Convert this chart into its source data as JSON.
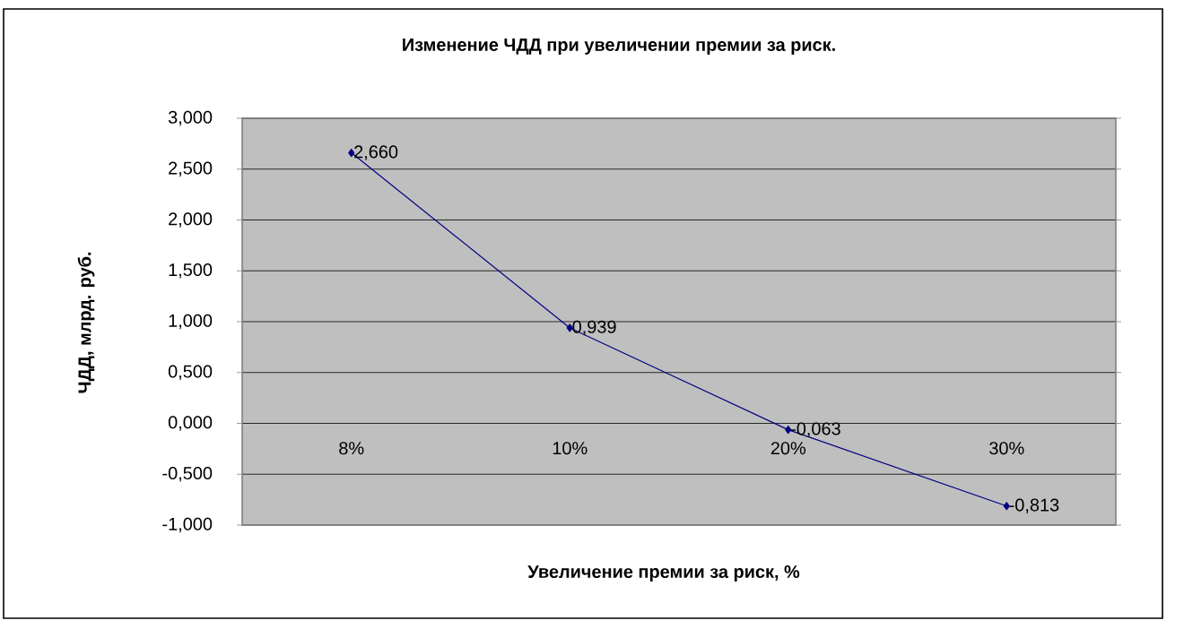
{
  "chart_data": {
    "type": "line",
    "title": "Изменение ЧДД при увеличении премии за риск.",
    "xlabel": "Увеличение премии за риск, %",
    "ylabel": "ЧДД, млрд. руб.",
    "categories": [
      "8%",
      "10%",
      "20%",
      "30%"
    ],
    "series": [
      {
        "color": "#000080",
        "values": [
          2.66,
          0.939,
          -0.063,
          -0.813
        ],
        "value_labels": [
          "2,660",
          "0,939",
          "-0,063",
          "-0,813"
        ]
      }
    ],
    "ylim": [
      -1,
      3
    ],
    "yticks": [
      {
        "value": -1,
        "label": "-1,000"
      },
      {
        "value": -0.5,
        "label": "-0,500"
      },
      {
        "value": 0,
        "label": "0,000"
      },
      {
        "value": 0.5,
        "label": "0,500"
      },
      {
        "value": 1,
        "label": "1,000"
      },
      {
        "value": 1.5,
        "label": "1,500"
      },
      {
        "value": 2,
        "label": "2,000"
      },
      {
        "value": 2.5,
        "label": "2,500"
      },
      {
        "value": 3,
        "label": "3,000"
      }
    ],
    "grid": "y",
    "marker": "diamond",
    "line_style": "solid"
  }
}
